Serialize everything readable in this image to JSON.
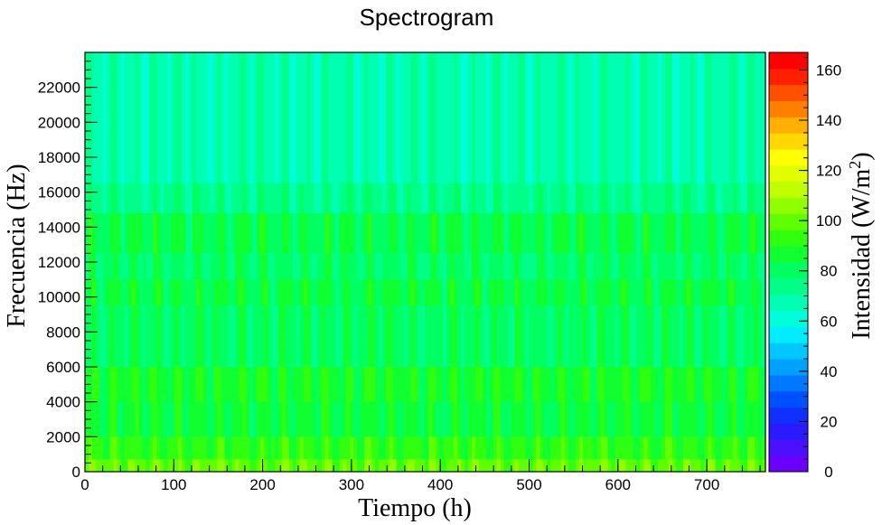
{
  "chart_data": {
    "type": "heatmap",
    "title": "Spectrogram",
    "xlabel": "Tiempo (h)",
    "ylabel": "Frecuencia (Hz)",
    "zlabel": "Intensidad (W/m",
    "zlabel_sup": "2",
    "zlabel_end": ")",
    "xlim": [
      0,
      766
    ],
    "ylim": [
      0,
      24000
    ],
    "zlim": [
      0,
      167
    ],
    "x_ticks": [
      0,
      100,
      200,
      300,
      400,
      500,
      600,
      700
    ],
    "y_ticks": [
      0,
      2000,
      4000,
      6000,
      8000,
      10000,
      12000,
      14000,
      16000,
      18000,
      20000,
      22000
    ],
    "z_ticks": [
      0,
      20,
      40,
      60,
      80,
      100,
      120,
      140,
      160
    ],
    "colormap": [
      "#6a00ff",
      "#4a10ff",
      "#2a1aff",
      "#1030ff",
      "#0050ff",
      "#0078ff",
      "#00a0ff",
      "#00c8ff",
      "#00ecff",
      "#00ffd8",
      "#00ffb0",
      "#00ff88",
      "#00ff60",
      "#10ff30",
      "#30ff10",
      "#60ff00",
      "#90ff00",
      "#c0ff00",
      "#e0ff00",
      "#ffff00",
      "#ffd800",
      "#ffb000",
      "#ff8000",
      "#ff5000",
      "#ff2000",
      "#ff0000"
    ],
    "bands": [
      {
        "f_min": 0,
        "f_max": 700,
        "intensity": 100
      },
      {
        "f_min": 700,
        "f_max": 2000,
        "intensity": 92
      },
      {
        "f_min": 2000,
        "f_max": 4000,
        "intensity": 85
      },
      {
        "f_min": 4000,
        "f_max": 6000,
        "intensity": 88
      },
      {
        "f_min": 6000,
        "f_max": 9500,
        "intensity": 80
      },
      {
        "f_min": 9500,
        "f_max": 11000,
        "intensity": 84
      },
      {
        "f_min": 11000,
        "f_max": 12500,
        "intensity": 79
      },
      {
        "f_min": 12500,
        "f_max": 14800,
        "intensity": 83
      },
      {
        "f_min": 14800,
        "f_max": 16500,
        "intensity": 74
      },
      {
        "f_min": 16500,
        "f_max": 24000,
        "intensity": 68
      }
    ],
    "periodic_pattern_period_h": 24
  }
}
